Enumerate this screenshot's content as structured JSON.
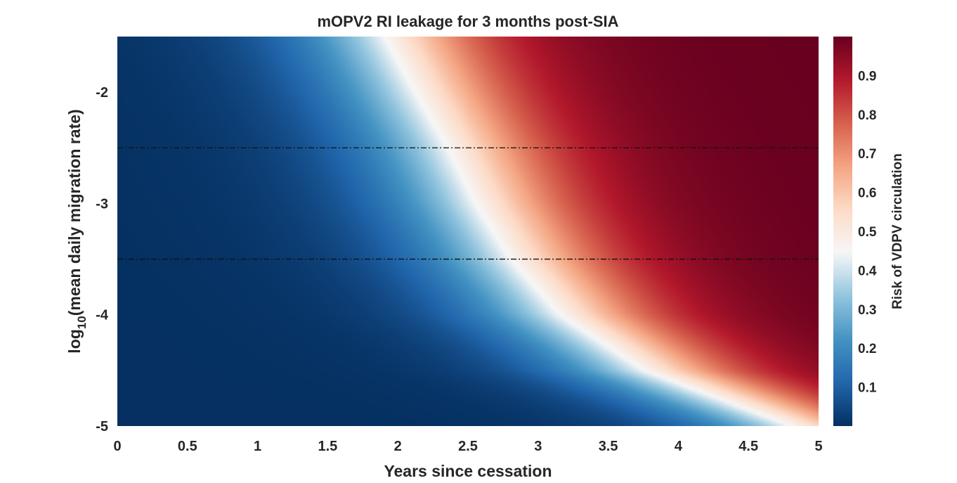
{
  "chart_data": {
    "type": "heatmap",
    "title": "mOPV2 RI leakage for 3 months post-SIA",
    "xlabel": "Years since cessation",
    "ylabel_prefix": "log",
    "ylabel_subscript": "10",
    "ylabel_suffix": "(mean daily migration rate)",
    "colorbar_label": "Risk of VDPV circulation",
    "xlim": [
      0,
      5
    ],
    "ylim": [
      -5,
      -1.5
    ],
    "x_ticks": [
      0,
      0.5,
      1,
      1.5,
      2,
      2.5,
      3,
      3.5,
      4,
      4.5,
      5
    ],
    "x_tick_labels": [
      "0",
      "0.5",
      "1",
      "1.5",
      "2",
      "2.5",
      "3",
      "3.5",
      "4",
      "4.5",
      "5"
    ],
    "y_ticks": [
      -2,
      -3,
      -4,
      -5
    ],
    "y_tick_labels": [
      "-2",
      "-3",
      "-4",
      "-5"
    ],
    "clim": [
      0,
      1
    ],
    "colorbar_ticks": [
      0.1,
      0.2,
      0.3,
      0.4,
      0.5,
      0.6,
      0.7,
      0.8,
      0.9
    ],
    "colorbar_tick_labels": [
      "0.1",
      "0.2",
      "0.3",
      "0.4",
      "0.5",
      "0.6",
      "0.7",
      "0.8",
      "0.9"
    ],
    "colormap": "diverging blue-white-red",
    "colormap_stops": [
      "#053061",
      "#2166ac",
      "#4393c3",
      "#92c5de",
      "#f7f7f7",
      "#fddbc7",
      "#f4a582",
      "#d6604d",
      "#b2182b",
      "#67001f"
    ],
    "contour_x_at_0_5": [
      {
        "y": -1.5,
        "x": 2.0
      },
      {
        "y": -2.0,
        "x": 2.22
      },
      {
        "y": -2.5,
        "x": 2.45
      },
      {
        "y": -3.0,
        "x": 2.65
      },
      {
        "y": -3.5,
        "x": 2.9
      },
      {
        "y": -4.0,
        "x": 3.25
      },
      {
        "y": -4.5,
        "x": 3.85
      },
      {
        "y": -5.0,
        "x": 4.9
      }
    ],
    "highlight_band_y": [
      -3.5,
      -2.5
    ],
    "grid": false
  }
}
